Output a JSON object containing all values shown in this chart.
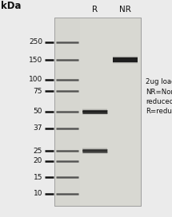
{
  "kda_label": "kDa",
  "col_labels": [
    "R",
    "NR"
  ],
  "annotation": "2ug loading\nNR=Non-\nreduced\nR=reduced",
  "bg_color": "#ebebeb",
  "gel_bg": "#d6d6d0",
  "marker_positions": [
    250,
    150,
    100,
    75,
    50,
    37,
    25,
    20,
    15,
    10
  ],
  "marker_labels": [
    "250",
    "150",
    "100",
    "75",
    "50",
    "37",
    "25",
    "20",
    "15",
    "10"
  ],
  "font_color": "#111111",
  "annotation_fontsize": 6.2,
  "label_fontsize": 7.5,
  "kda_fontsize": 8.5,
  "marker_fontsize": 6.5,
  "R_bands": [
    {
      "kda": 50,
      "intensity": 0.82
    },
    {
      "kda": 25,
      "intensity": 0.65
    }
  ],
  "NR_bands": [
    {
      "kda": 150,
      "intensity": 0.9
    }
  ]
}
